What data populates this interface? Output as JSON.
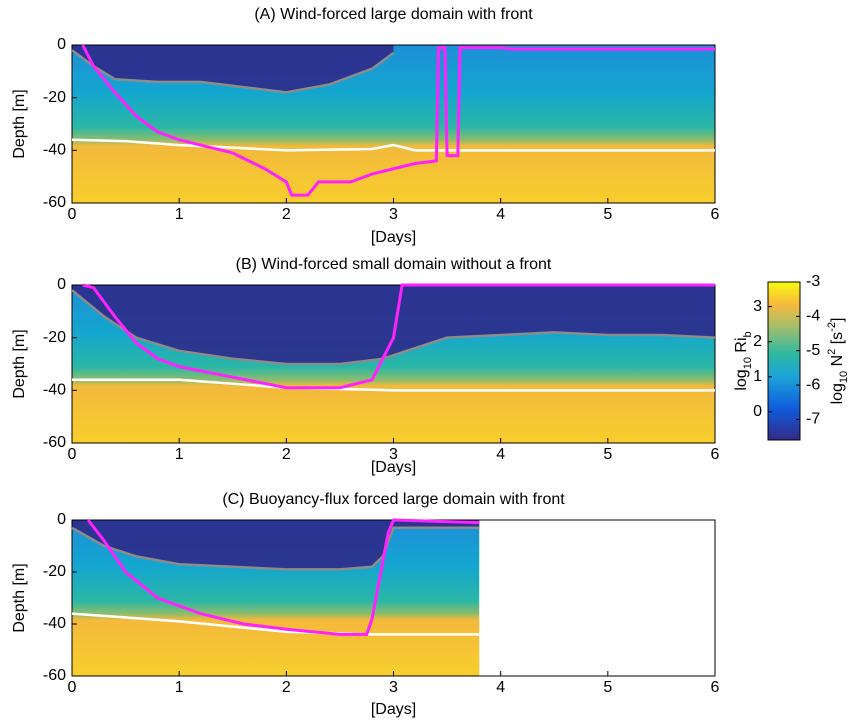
{
  "chart_data": [
    {
      "type": "line",
      "title": "(A) Wind-forced large domain with front",
      "xlabel": "[Days]",
      "ylabel": "Depth [m]",
      "xlim": [
        0,
        6
      ],
      "xticks": [
        0,
        1,
        2,
        3,
        4,
        5,
        6
      ],
      "ylim": [
        -60,
        0
      ],
      "yticks": [
        0,
        -20,
        -40,
        -60
      ],
      "series": [
        {
          "color": "#8c8c8c",
          "x": [
            0,
            0.2,
            0.4,
            0.8,
            1.2,
            1.6,
            2.0,
            2.4,
            2.8,
            3.0
          ],
          "values": [
            -2,
            -8,
            -13,
            -14,
            -14,
            -16,
            -18,
            -15,
            -9,
            -3
          ]
        },
        {
          "color": "#ffffff",
          "x": [
            0,
            0.5,
            1,
            2,
            2.8,
            3.0,
            3.2,
            6
          ],
          "values": [
            -36,
            -36.5,
            -38,
            -40,
            -39.5,
            -38,
            -40,
            -40
          ]
        },
        {
          "color": "#ff22ff",
          "x": [
            0.1,
            0.2,
            0.4,
            0.6,
            0.8,
            1.0,
            1.2,
            1.5,
            1.8,
            2.0,
            2.05,
            2.2,
            2.3,
            2.6,
            2.8,
            3.0,
            3.2,
            3.4,
            3.42,
            3.48,
            3.5,
            3.6,
            3.62,
            4.0,
            4.1,
            6
          ],
          "values": [
            0,
            -8,
            -18,
            -27,
            -33,
            -36,
            -38,
            -41,
            -47,
            -52,
            -57,
            -57,
            -52,
            -52,
            -49,
            -47,
            -45,
            -44,
            -1,
            -1,
            -42,
            -42,
            -1,
            -1,
            -1.5,
            -1.5
          ]
        }
      ]
    },
    {
      "type": "line",
      "title": "(B) Wind-forced small domain without a front",
      "xlabel": "[Days]",
      "ylabel": "Depth [m]",
      "xlim": [
        0,
        6
      ],
      "xticks": [
        0,
        1,
        2,
        3,
        4,
        5,
        6
      ],
      "ylim": [
        -60,
        0
      ],
      "yticks": [
        0,
        -20,
        -40,
        -60
      ],
      "series": [
        {
          "color": "#8c8c8c",
          "x": [
            0,
            0.3,
            0.6,
            1.0,
            1.5,
            2.0,
            2.5,
            2.9,
            3.2,
            3.5,
            4,
            4.5,
            5,
            5.5,
            6
          ],
          "values": [
            -2,
            -12,
            -20,
            -25,
            -28,
            -30,
            -30,
            -28,
            -24,
            -20,
            -19,
            -18,
            -19,
            -19,
            -20
          ]
        },
        {
          "color": "#ffffff",
          "x": [
            0,
            1,
            2,
            3,
            6
          ],
          "values": [
            -36,
            -36,
            -39,
            -40,
            -40
          ]
        },
        {
          "color": "#ff22ff",
          "x": [
            0.1,
            0.2,
            0.4,
            0.6,
            0.8,
            1.0,
            1.5,
            2.0,
            2.5,
            2.8,
            3.0,
            3.08,
            6
          ],
          "values": [
            0,
            -1,
            -12,
            -22,
            -28,
            -31,
            -35,
            -39,
            -39,
            -36,
            -20,
            0,
            0
          ]
        }
      ]
    },
    {
      "type": "line",
      "title": "(C) Buoyancy-flux forced large domain with front",
      "xlabel": "[Days]",
      "ylabel": "Depth [m]",
      "xlim": [
        0,
        6
      ],
      "xticks": [
        0,
        1,
        2,
        3,
        4,
        5,
        6
      ],
      "ylim": [
        -60,
        0
      ],
      "yticks": [
        0,
        -20,
        -40,
        -60
      ],
      "series": [
        {
          "color": "#8c8c8c",
          "x": [
            0,
            0.3,
            0.6,
            1,
            1.5,
            2,
            2.5,
            2.8,
            2.9,
            3.0,
            3.8
          ],
          "values": [
            -3,
            -10,
            -14,
            -17,
            -18,
            -19,
            -19,
            -18,
            -14,
            -3,
            -3
          ]
        },
        {
          "color": "#ffffff",
          "x": [
            0,
            1,
            2,
            2.8,
            3.8
          ],
          "values": [
            -36,
            -39,
            -43,
            -44,
            -44
          ]
        },
        {
          "color": "#ff22ff",
          "x": [
            0.15,
            0.3,
            0.5,
            0.8,
            1.2,
            1.6,
            2.0,
            2.5,
            2.75,
            2.8,
            2.95,
            3.0,
            3.8
          ],
          "values": [
            0,
            -8,
            -20,
            -30,
            -36,
            -40,
            -42,
            -44,
            -44,
            -38,
            -5,
            0,
            -1
          ]
        }
      ]
    }
  ],
  "colorbar": {
    "left_label": [
      "log",
      "10",
      " Ri",
      "b"
    ],
    "right_label": [
      "log",
      "10",
      " N",
      "2",
      " [s",
      "-2",
      "]"
    ],
    "left_lim": [
      -0.8,
      3.7
    ],
    "left_ticks": [
      0,
      1,
      2,
      3
    ],
    "right_lim": [
      -7.6,
      -3
    ],
    "right_ticks": [
      -3,
      -4,
      -5,
      -6,
      -7
    ]
  }
}
